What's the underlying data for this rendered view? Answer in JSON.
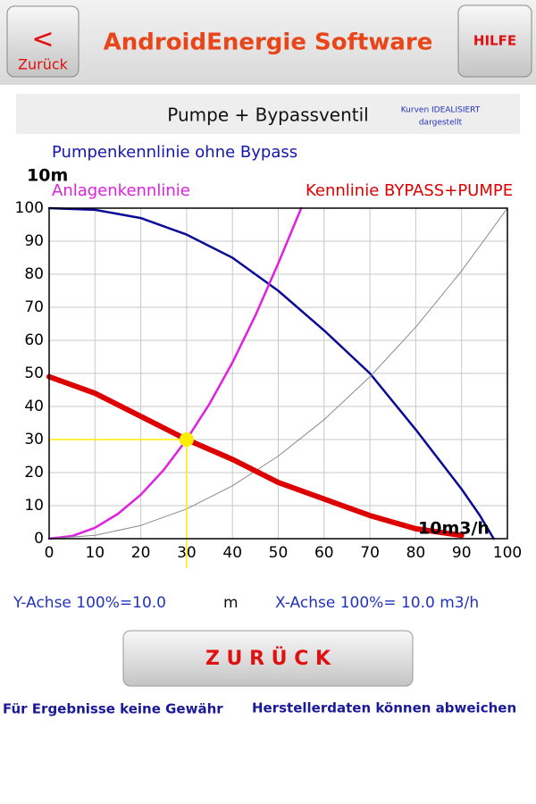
{
  "header": {
    "back_icon": "<",
    "back_label": "Zurück",
    "title": "AndroidEnergie Software",
    "help": "HILFE"
  },
  "subheader": {
    "title": "Pumpe + Bypassventil",
    "note_line1": "Kurven IDEALISIERT",
    "note_line2": "dargestellt"
  },
  "chart_data": {
    "type": "line",
    "y_label": "10m",
    "x_label": "10m3/h",
    "xlim": [
      0,
      100
    ],
    "ylim": [
      0,
      100
    ],
    "xticks": [
      0,
      10,
      20,
      30,
      40,
      50,
      60,
      70,
      80,
      90,
      100
    ],
    "yticks": [
      0,
      10,
      20,
      30,
      40,
      50,
      60,
      70,
      80,
      90,
      100
    ],
    "grid": true,
    "series": [
      {
        "name": "Pumpenkennlinie ohne Bypass",
        "color": "#0a0a96",
        "x": [
          0,
          10,
          20,
          30,
          40,
          50,
          60,
          70,
          80,
          85,
          90,
          94,
          97
        ],
        "values": [
          100,
          99.5,
          97,
          92,
          85,
          75,
          63,
          50,
          33,
          24,
          15,
          7,
          0
        ]
      },
      {
        "name": "Anlagenkennlinie",
        "color": "#e020e0",
        "x": [
          0,
          5,
          10,
          15,
          20,
          25,
          30,
          35,
          40,
          45,
          50,
          55
        ],
        "values": [
          0,
          0.8,
          3.3,
          7.5,
          13.3,
          20.8,
          30,
          40.8,
          53.3,
          67.5,
          83.3,
          100
        ]
      },
      {
        "color": "#8a8a8a",
        "x": [
          0,
          10,
          20,
          30,
          40,
          50,
          60,
          70,
          80,
          90,
          100
        ],
        "values": [
          0,
          1,
          4,
          9,
          16,
          25,
          36,
          49,
          64,
          81,
          100
        ]
      },
      {
        "name": "Kennlinie BYPASS+PUMPE",
        "color": "#dd0000",
        "x": [
          0,
          10,
          20,
          30,
          40,
          50,
          60,
          70,
          80,
          90
        ],
        "values": [
          49,
          44,
          37,
          30,
          24,
          17,
          12,
          7,
          3,
          1
        ]
      }
    ],
    "operating_point": {
      "x": 30,
      "y": 30,
      "color": "#ffee00"
    }
  },
  "footer": {
    "y_scale": "Y-Achse 100%=10.0",
    "y_unit": "m",
    "x_scale": "X-Achse 100%= 10.0 m3/h",
    "button": "Z U R Ü C K",
    "disclaimer_left": "Für Ergebnisse keine Gewähr",
    "disclaimer_right": "Herstellerdaten können abweichen"
  }
}
